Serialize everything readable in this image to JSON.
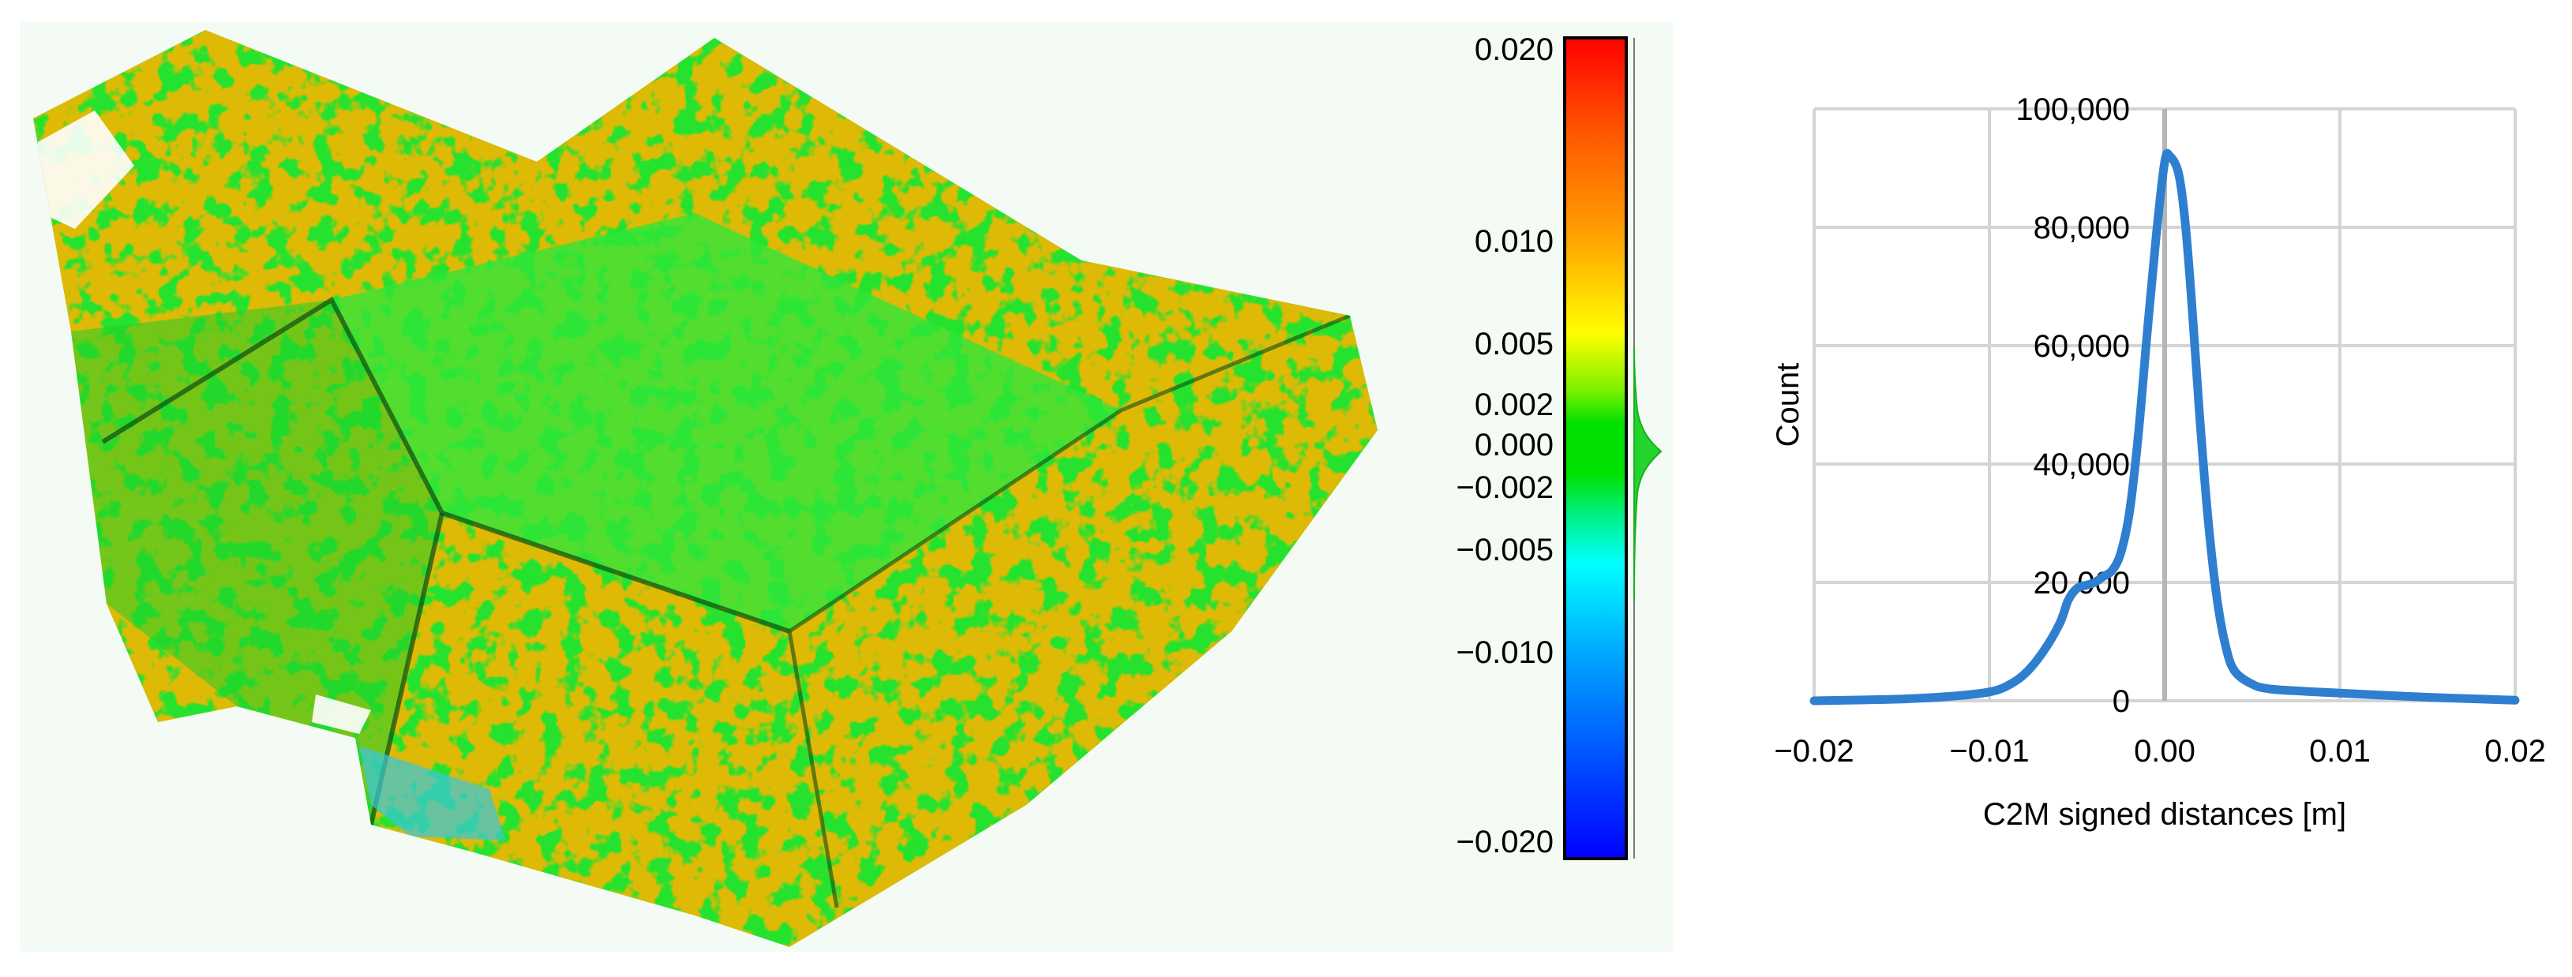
{
  "chart_data": [
    {
      "type": "colorbar",
      "tick_labels": [
        "0.020",
        "0.010",
        "0.005",
        "0.002",
        "0.000",
        "−0.002",
        "−0.005",
        "−0.010",
        "−0.020"
      ],
      "tick_values": [
        0.02,
        0.01,
        0.005,
        0.002,
        0.0,
        -0.002,
        -0.005,
        -0.01,
        -0.02
      ],
      "range": [
        -0.02,
        0.02
      ],
      "colors": [
        "#ff0000",
        "#ff8000",
        "#ffff00",
        "#00e000",
        "#00ffff",
        "#0080ff",
        "#0000ff"
      ]
    },
    {
      "type": "line",
      "title": "",
      "xlabel": "C2M signed distances [m]",
      "ylabel": "Count",
      "xlim": [
        -0.02,
        0.02
      ],
      "ylim": [
        0,
        100000
      ],
      "x_tick_labels": [
        "−0.02",
        "−0.01",
        "0.00",
        "0.01",
        "0.02"
      ],
      "x_tick_values": [
        -0.02,
        -0.01,
        0.0,
        0.01,
        0.02
      ],
      "y_tick_labels": [
        "0",
        "20,000",
        "40,000",
        "60,000",
        "80,000",
        "100,000"
      ],
      "y_tick_values": [
        0,
        20000,
        40000,
        60000,
        80000,
        100000
      ],
      "grid": true,
      "series": [
        {
          "color": "#2f7fd0",
          "x": [
            -0.02,
            -0.015,
            -0.012,
            -0.01,
            -0.009,
            -0.008,
            -0.007,
            -0.006,
            -0.0055,
            -0.005,
            -0.0045,
            -0.004,
            -0.0035,
            -0.003,
            -0.0025,
            -0.002,
            -0.0015,
            -0.001,
            -0.0005,
            0.0,
            0.0003,
            0.0008,
            0.0012,
            0.0016,
            0.002,
            0.0025,
            0.003,
            0.0035,
            0.004,
            0.005,
            0.006,
            0.008,
            0.01,
            0.012,
            0.015,
            0.018,
            0.02
          ],
          "y": [
            0,
            300,
            800,
            1500,
            2500,
            4500,
            8000,
            13000,
            17000,
            19000,
            19500,
            20000,
            21000,
            22000,
            25000,
            32000,
            45000,
            62000,
            78000,
            91000,
            92000,
            89000,
            80000,
            65000,
            48000,
            30000,
            17000,
            9000,
            5000,
            2800,
            2000,
            1600,
            1300,
            1000,
            600,
            300,
            100
          ]
        }
      ]
    }
  ]
}
